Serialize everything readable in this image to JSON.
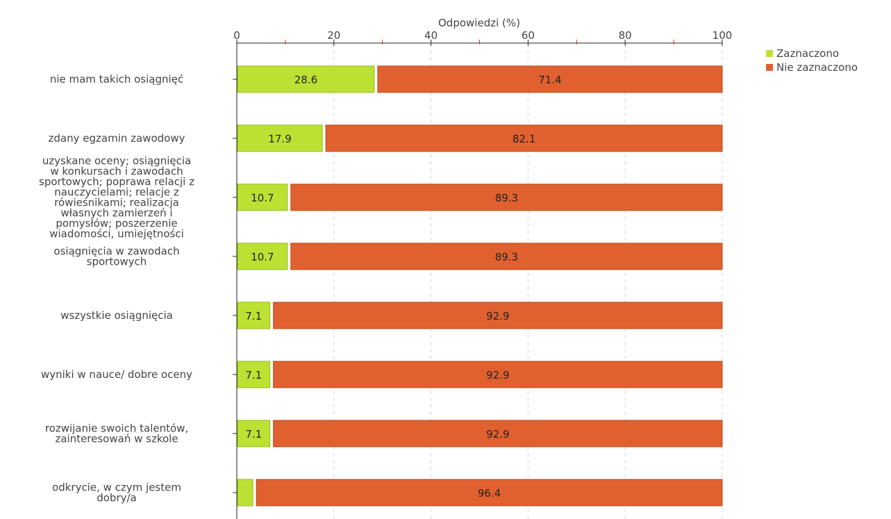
{
  "chart_data": {
    "type": "bar",
    "orientation": "horizontal",
    "stacked": true,
    "xlabel": "Odpowiedzi (%)",
    "xlim": [
      0,
      100
    ],
    "xticks": [
      0,
      20,
      40,
      60,
      80,
      100
    ],
    "grid": true,
    "legend_position": "top-right",
    "categories": [
      "nie mam takich osiągnięć",
      "zdany egzamin zawodowy",
      "uzyskane oceny; osiągnięcia w konkursach i zawodach sportowych; poprawa relacji z nauczycielami; relacje z rówieśnikami; realizacja własnych zamierzeń i pomysłów; poszerzenie wiadomości, umiejętności",
      "osiągnięcia w zawodach sportowych",
      "wszystkie osiągnięcia",
      "wyniki w nauce/ dobre oceny",
      "rozwijanie swoich talentów, zainteresowań w szkole",
      "odkrycie, w czym jestem dobry/a"
    ],
    "category_lines": [
      [
        "nie mam takich osiągnięć"
      ],
      [
        "zdany egzamin zawodowy"
      ],
      [
        "uzyskane oceny; osiągnięcia",
        "w konkursach i zawodach",
        "sportowych; poprawa relacji z",
        "nauczycielami; relacje z",
        "rówieśnikami; realizacja",
        "własnych zamierzeń i",
        "pomysłów; poszerzenie",
        "wiadomości, umiejętności"
      ],
      [
        "osiągnięcia w zawodach",
        "sportowych"
      ],
      [
        "wszystkie osiągnięcia"
      ],
      [
        "wyniki w nauce/ dobre oceny"
      ],
      [
        "rozwijanie swoich talentów,",
        "zainteresowań w szkole"
      ],
      [
        "odkrycie, w czym jestem",
        "dobry/a"
      ]
    ],
    "series": [
      {
        "name": "Zaznaczono",
        "color": "#bde132",
        "border": "#8dba1c",
        "values": [
          28.6,
          17.9,
          10.7,
          10.7,
          7.1,
          7.1,
          7.1,
          3.6
        ],
        "labels": [
          "28.6",
          "17.9",
          "10.7",
          "10.7",
          "7.1",
          "7.1",
          "7.1",
          ""
        ]
      },
      {
        "name": "Nie zaznaczono",
        "color": "#e0612f",
        "border": "#b8481b",
        "values": [
          71.4,
          82.1,
          89.3,
          89.3,
          92.9,
          92.9,
          92.9,
          96.4
        ],
        "labels": [
          "71.4",
          "82.1",
          "89.3",
          "89.3",
          "92.9",
          "92.9",
          "92.9",
          "96.4"
        ]
      }
    ]
  }
}
